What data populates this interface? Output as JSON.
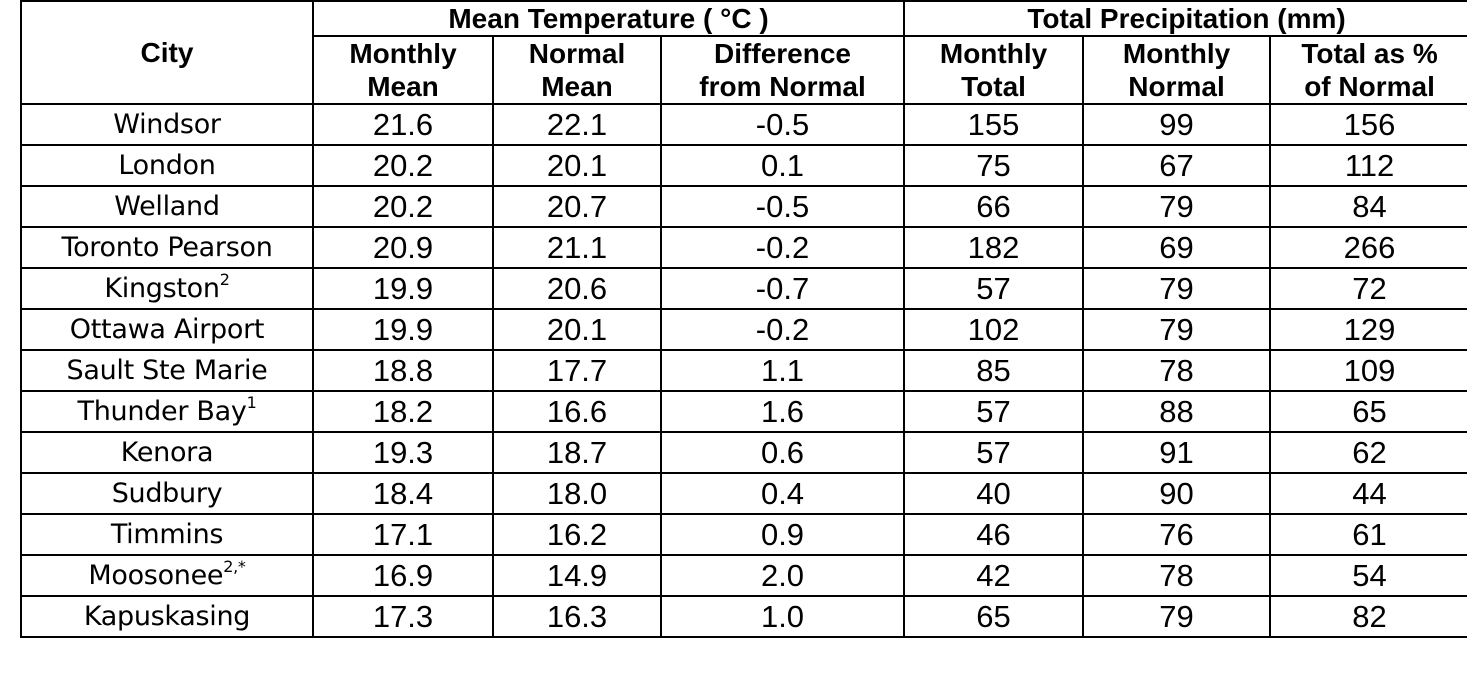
{
  "table": {
    "city_header": "City",
    "group_headers": [
      "Mean Temperature ( °C )",
      "Total Precipitation (mm)"
    ],
    "sub_headers": [
      [
        "Monthly",
        "Mean"
      ],
      [
        "Normal",
        "Mean"
      ],
      [
        "Difference",
        "from Normal"
      ],
      [
        "Monthly",
        "Total"
      ],
      [
        "Monthly",
        "Normal"
      ],
      [
        "Total as %",
        "of Normal"
      ]
    ],
    "rows": [
      {
        "city": "Windsor",
        "sup": "",
        "values": [
          "21.6",
          "22.1",
          "-0.5",
          "155",
          "99",
          "156"
        ]
      },
      {
        "city": "London",
        "sup": "",
        "values": [
          "20.2",
          "20.1",
          "0.1",
          "75",
          "67",
          "112"
        ]
      },
      {
        "city": "Welland",
        "sup": "",
        "values": [
          "20.2",
          "20.7",
          "-0.5",
          "66",
          "79",
          "84"
        ]
      },
      {
        "city": "Toronto Pearson",
        "sup": "",
        "values": [
          "20.9",
          "21.1",
          "-0.2",
          "182",
          "69",
          "266"
        ]
      },
      {
        "city": "Kingston",
        "sup": "2",
        "values": [
          "19.9",
          "20.6",
          "-0.7",
          "57",
          "79",
          "72"
        ]
      },
      {
        "city": "Ottawa Airport",
        "sup": "",
        "values": [
          "19.9",
          "20.1",
          "-0.2",
          "102",
          "79",
          "129"
        ]
      },
      {
        "city": "Sault Ste Marie",
        "sup": "",
        "values": [
          "18.8",
          "17.7",
          "1.1",
          "85",
          "78",
          "109"
        ]
      },
      {
        "city": "Thunder Bay",
        "sup": "1",
        "values": [
          "18.2",
          "16.6",
          "1.6",
          "57",
          "88",
          "65"
        ]
      },
      {
        "city": "Kenora",
        "sup": "",
        "values": [
          "19.3",
          "18.7",
          "0.6",
          "57",
          "91",
          "62"
        ]
      },
      {
        "city": "Sudbury",
        "sup": "",
        "values": [
          "18.4",
          "18.0",
          "0.4",
          "40",
          "90",
          "44"
        ]
      },
      {
        "city": "Timmins",
        "sup": "",
        "values": [
          "17.1",
          "16.2",
          "0.9",
          "46",
          "76",
          "61"
        ]
      },
      {
        "city": "Moosonee",
        "sup": "2,*",
        "values": [
          "16.9",
          "14.9",
          "2.0",
          "42",
          "78",
          "54"
        ]
      },
      {
        "city": "Kapuskasing",
        "sup": "",
        "values": [
          "17.3",
          "16.3",
          "1.0",
          "65",
          "79",
          "82"
        ]
      }
    ]
  }
}
